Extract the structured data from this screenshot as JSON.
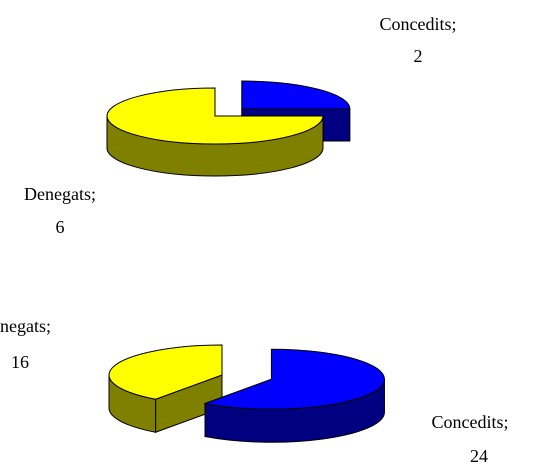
{
  "chart_data": [
    {
      "type": "pie",
      "style": "3d-exploded",
      "slices": [
        {
          "label": "Concedits",
          "value": 2,
          "color": "#0000FF",
          "side_color": "#000080",
          "exploded": true
        },
        {
          "label": "Denegats",
          "value": 6,
          "color": "#FFFF00",
          "side_color": "#808000",
          "exploded": false
        }
      ],
      "data_labels": [
        {
          "name": "Concedits;",
          "value": "2"
        },
        {
          "name": "Denegats;",
          "value": "6"
        }
      ]
    },
    {
      "type": "pie",
      "style": "3d-exploded",
      "slices": [
        {
          "label": "Concedits",
          "value": 24,
          "color": "#0000FF",
          "side_color": "#000080",
          "exploded": true
        },
        {
          "label": "Denegats",
          "value": 16,
          "color": "#FFFF00",
          "side_color": "#808000",
          "exploded": false
        }
      ],
      "data_labels": [
        {
          "name": "Concedits;",
          "value": "24"
        },
        {
          "name": "negats;",
          "value": "16"
        }
      ]
    }
  ]
}
